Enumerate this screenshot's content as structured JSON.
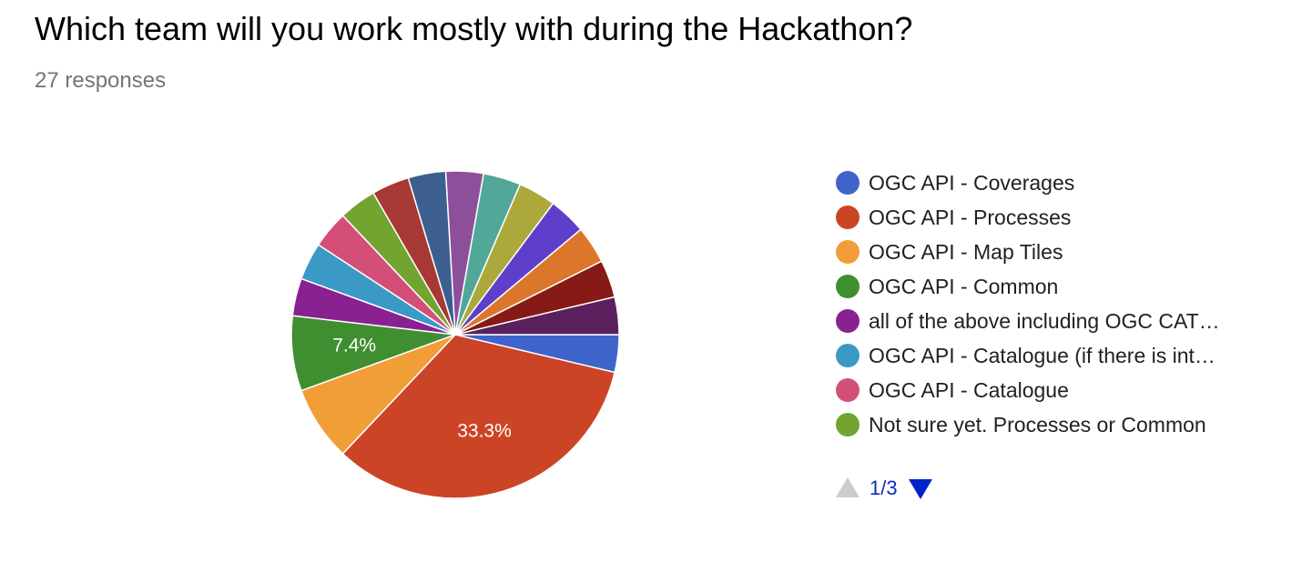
{
  "header": {
    "title": "Which team will you work mostly with during the Hackathon?",
    "responses": "27 responses"
  },
  "pager": {
    "page_text": "1/3",
    "prev_icon": "triangle-up-icon",
    "next_icon": "triangle-down-icon",
    "prev_color": "#cccccc",
    "next_color": "#0022cc"
  },
  "chart_data": {
    "type": "pie",
    "total_responses": 27,
    "slices": [
      {
        "label": "OGC API - Coverages",
        "count": 1,
        "color": "#3e63c9"
      },
      {
        "label": "OGC API - Processes",
        "count": 9,
        "color": "#cc4426",
        "data_label": "33.3%"
      },
      {
        "label": "OGC API - Map Tiles",
        "count": 2,
        "color": "#f19e39"
      },
      {
        "label": "OGC API - Common",
        "count": 2,
        "color": "#3f8f31",
        "data_label": "7.4%"
      },
      {
        "label": "all of the above including OGC CAT…",
        "count": 1,
        "color": "#8a2190"
      },
      {
        "label": "OGC API - Catalogue (if there is int…",
        "count": 1,
        "color": "#3b99c6"
      },
      {
        "label": "OGC API - Catalogue",
        "count": 1,
        "color": "#d44f78"
      },
      {
        "label": "Not sure yet. Processes or Common",
        "count": 1,
        "color": "#72a530"
      },
      {
        "count": 1,
        "color": "#a83833"
      },
      {
        "count": 1,
        "color": "#3d5f8f"
      },
      {
        "count": 1,
        "color": "#8e4f9a"
      },
      {
        "count": 1,
        "color": "#51a898"
      },
      {
        "count": 1,
        "color": "#aca83c"
      },
      {
        "count": 1,
        "color": "#5e3fc9"
      },
      {
        "count": 1,
        "color": "#dc762b"
      },
      {
        "count": 1,
        "color": "#861a16"
      },
      {
        "count": 1,
        "color": "#5b1f5e"
      }
    ],
    "legend_placement": "right"
  }
}
